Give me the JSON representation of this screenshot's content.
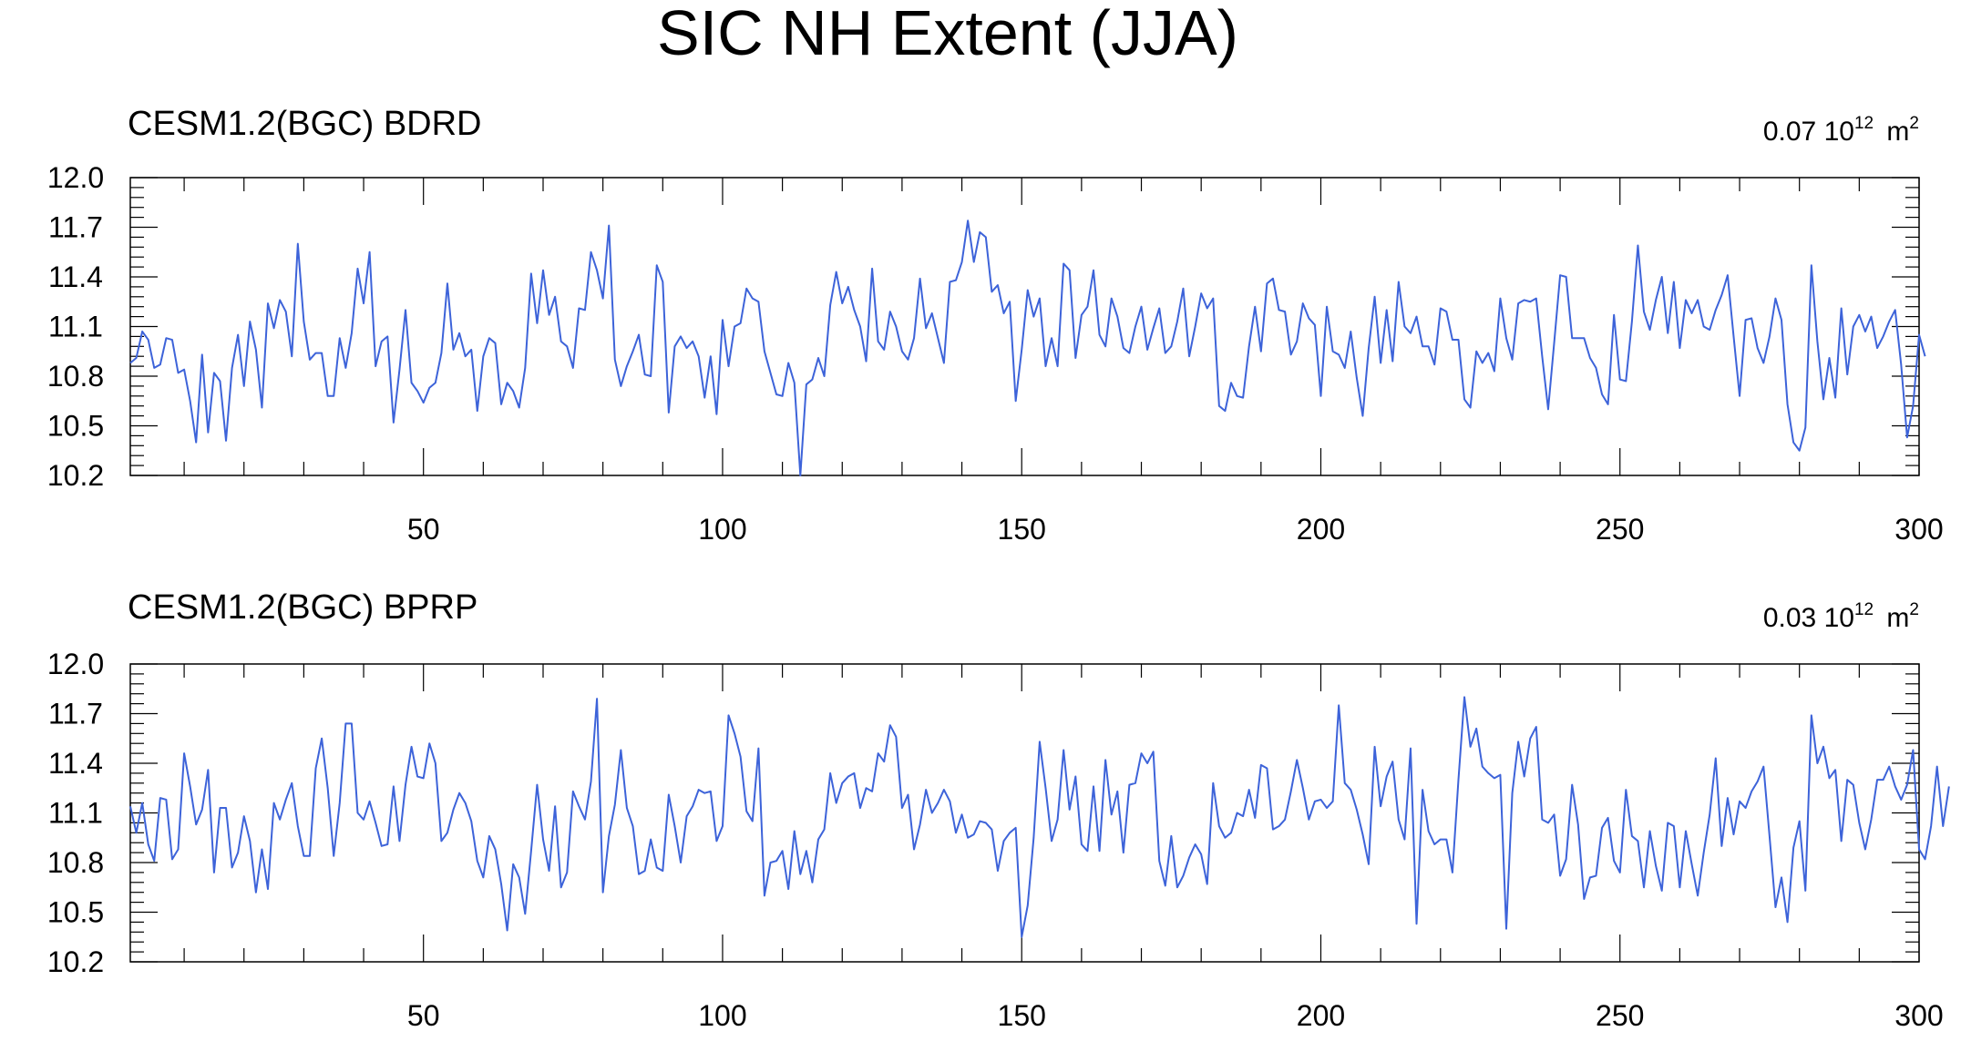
{
  "figure": {
    "title": "SIC NH Extent (JJA)"
  },
  "chart_data": [
    {
      "type": "line",
      "title": "CESM1.2(BGC) BDRD",
      "annotation": {
        "value": "0.07",
        "base": "10",
        "exponent": "12",
        "unit": "m",
        "unit_exponent": "2"
      },
      "xlim": [
        1,
        300
      ],
      "ylim": [
        10.2,
        12.0
      ],
      "x_ticks": [
        "50",
        "100",
        "150",
        "200",
        "250",
        "300"
      ],
      "y_ticks": [
        "12.0",
        "11.7",
        "11.4",
        "11.1",
        "10.8",
        "10.5",
        "10.2"
      ],
      "line_color": "#3d63d9",
      "series": [
        {
          "x_start": 1,
          "values": [
            10.88,
            10.91,
            11.07,
            11.02,
            10.85,
            10.87,
            11.03,
            11.02,
            10.82,
            10.84,
            10.65,
            10.4,
            10.93,
            10.46,
            10.82,
            10.77,
            10.41,
            10.85,
            11.05,
            10.74,
            11.13,
            10.96,
            10.61,
            11.24,
            11.09,
            11.26,
            11.19,
            10.92,
            11.6,
            11.13,
            10.9,
            10.94,
            10.94,
            10.68,
            10.68,
            11.03,
            10.85,
            11.06,
            11.45,
            11.24,
            11.55,
            10.86,
            11.01,
            11.04,
            10.52,
            10.84,
            11.2,
            10.76,
            10.71,
            10.64,
            10.73,
            10.76,
            10.94,
            11.36,
            10.96,
            11.06,
            10.92,
            10.96,
            10.59,
            10.92,
            11.03,
            11.0,
            10.63,
            10.76,
            10.71,
            10.61,
            10.85,
            11.42,
            11.12,
            11.44,
            11.17,
            11.28,
            11.01,
            10.98,
            10.85,
            11.21,
            11.2,
            11.55,
            11.44,
            11.27,
            11.71,
            10.9,
            10.74,
            10.86,
            10.95,
            11.05,
            10.81,
            10.8,
            11.47,
            11.37,
            10.58,
            10.98,
            11.04,
            10.97,
            11.01,
            10.92,
            10.67,
            10.92,
            10.57,
            11.14,
            10.86,
            11.1,
            11.12,
            11.33,
            11.27,
            11.25,
            10.95,
            10.82,
            10.69,
            10.68,
            10.88,
            10.76,
            10.2,
            10.75,
            10.78,
            10.91,
            10.8,
            11.23,
            11.43,
            11.24,
            11.34,
            11.2,
            11.1,
            10.89,
            11.45,
            11.01,
            10.96,
            11.19,
            11.1,
            10.95,
            10.9,
            11.03,
            11.39,
            11.09,
            11.18,
            11.03,
            10.88,
            11.37,
            11.38,
            11.49,
            11.74,
            11.49,
            11.67,
            11.64,
            11.31,
            11.35,
            11.18,
            11.25,
            10.65,
            10.96,
            11.32,
            11.16,
            11.27,
            10.86,
            11.03,
            10.86,
            11.48,
            11.44,
            10.91,
            11.17,
            11.22,
            11.44,
            11.05,
            10.98,
            11.27,
            11.16,
            10.97,
            10.94,
            11.1,
            11.22,
            10.96,
            11.09,
            11.21,
            10.94,
            10.98,
            11.13,
            11.33,
            10.92,
            11.1,
            11.3,
            11.21,
            11.27,
            10.62,
            10.59,
            10.76,
            10.68,
            10.67,
            10.98,
            11.22,
            10.95,
            11.36,
            11.39,
            11.2,
            11.19,
            10.93,
            11.01,
            11.24,
            11.15,
            11.11,
            10.68,
            11.22,
            10.95,
            10.93,
            10.85,
            11.07,
            10.79,
            10.56,
            10.97,
            11.28,
            10.88,
            11.2,
            10.89,
            11.37,
            11.1,
            11.06,
            11.16,
            10.98,
            10.98,
            10.87,
            11.21,
            11.19,
            11.02,
            11.02,
            10.66,
            10.61,
            10.95,
            10.88,
            10.94,
            10.83,
            11.27,
            11.03,
            10.9,
            11.24,
            11.26,
            11.25,
            11.27,
            10.92,
            10.6,
            11.0,
            11.41,
            11.4,
            11.03,
            11.03,
            11.03,
            10.91,
            10.85,
            10.69,
            10.63,
            11.17,
            10.78,
            10.77,
            11.13,
            11.59,
            11.19,
            11.08,
            11.26,
            11.4,
            11.06,
            11.37,
            10.97,
            11.26,
            11.18,
            11.26,
            11.1,
            11.08,
            11.2,
            11.29,
            11.41,
            11.04,
            10.68,
            11.14,
            11.15,
            10.97,
            10.88,
            11.04,
            11.27,
            11.14,
            10.63,
            10.4,
            10.35,
            10.49,
            11.47,
            11.01,
            10.66,
            10.91,
            10.67,
            11.21,
            10.81,
            11.1,
            11.17,
            11.07,
            11.16,
            10.97,
            11.04,
            11.13,
            11.2,
            10.87,
            10.43,
            10.62,
            11.05,
            10.92
          ]
        }
      ]
    },
    {
      "type": "line",
      "title": "CESM1.2(BGC) BPRP",
      "annotation": {
        "value": "0.03",
        "base": "10",
        "exponent": "12",
        "unit": "m",
        "unit_exponent": "2"
      },
      "xlim": [
        1,
        300
      ],
      "ylim": [
        10.2,
        12.0
      ],
      "x_ticks": [
        "50",
        "100",
        "150",
        "200",
        "250",
        "300"
      ],
      "y_ticks": [
        "12.0",
        "11.7",
        "11.4",
        "11.1",
        "10.8",
        "10.5",
        "10.2"
      ],
      "line_color": "#3d63d9",
      "series": [
        {
          "x_start": 1,
          "values": [
            11.14,
            10.98,
            11.16,
            10.91,
            10.81,
            11.19,
            11.18,
            10.82,
            10.88,
            11.46,
            11.26,
            11.03,
            11.12,
            11.36,
            10.74,
            11.13,
            11.13,
            10.77,
            10.86,
            11.08,
            10.93,
            10.62,
            10.88,
            10.64,
            11.16,
            11.06,
            11.18,
            11.28,
            11.02,
            10.84,
            10.84,
            11.37,
            11.55,
            11.25,
            10.84,
            11.16,
            11.64,
            11.64,
            11.1,
            11.06,
            11.17,
            11.04,
            10.9,
            10.91,
            11.26,
            10.93,
            11.27,
            11.5,
            11.32,
            11.31,
            11.52,
            11.4,
            10.93,
            10.98,
            11.12,
            11.22,
            11.16,
            11.05,
            10.81,
            10.71,
            10.96,
            10.88,
            10.67,
            10.39,
            10.79,
            10.71,
            10.49,
            10.87,
            11.27,
            10.94,
            10.75,
            11.14,
            10.65,
            10.74,
            11.23,
            11.14,
            11.06,
            11.29,
            11.79,
            10.62,
            10.96,
            11.15,
            11.48,
            11.13,
            11.02,
            10.73,
            10.75,
            10.94,
            10.77,
            10.75,
            11.21,
            11.02,
            10.8,
            11.08,
            11.14,
            11.24,
            11.22,
            11.23,
            10.93,
            11.02,
            11.69,
            11.58,
            11.44,
            11.11,
            11.05,
            11.49,
            10.6,
            10.8,
            10.81,
            10.87,
            10.64,
            10.99,
            10.73,
            10.87,
            10.68,
            10.94,
            11.0,
            11.34,
            11.16,
            11.28,
            11.32,
            11.34,
            11.13,
            11.25,
            11.23,
            11.46,
            11.41,
            11.63,
            11.56,
            11.13,
            11.21,
            10.88,
            11.03,
            11.24,
            11.1,
            11.16,
            11.24,
            11.17,
            10.98,
            11.09,
            10.95,
            10.97,
            11.05,
            11.04,
            11.0,
            10.75,
            10.93,
            10.98,
            11.01,
            10.35,
            10.54,
            10.95,
            11.53,
            11.25,
            10.93,
            11.06,
            11.48,
            11.12,
            11.32,
            10.91,
            10.87,
            11.26,
            10.87,
            11.42,
            11.09,
            11.23,
            10.86,
            11.27,
            11.28,
            11.46,
            11.4,
            11.47,
            10.81,
            10.66,
            10.96,
            10.65,
            10.72,
            10.83,
            10.91,
            10.85,
            10.67,
            11.28,
            11.02,
            10.95,
            10.98,
            11.1,
            11.08,
            11.24,
            11.07,
            11.39,
            11.37,
            11.0,
            11.02,
            11.06,
            11.23,
            11.42,
            11.25,
            11.06,
            11.17,
            11.18,
            11.13,
            11.17,
            11.75,
            11.28,
            11.24,
            11.12,
            10.97,
            10.79,
            11.5,
            11.14,
            11.32,
            11.41,
            11.06,
            10.94,
            11.49,
            10.43,
            11.24,
            10.99,
            10.91,
            10.94,
            10.94,
            10.74,
            11.3,
            11.8,
            11.5,
            11.61,
            11.38,
            11.34,
            11.31,
            11.33,
            10.4,
            11.22,
            11.53,
            11.32,
            11.55,
            11.62,
            11.06,
            11.04,
            11.09,
            10.72,
            10.82,
            11.27,
            11.03,
            10.58,
            10.71,
            10.72,
            11.01,
            11.07,
            10.81,
            10.74,
            11.24,
            10.96,
            10.93,
            10.65,
            10.99,
            10.78,
            10.63,
            11.04,
            11.02,
            10.65,
            10.99,
            10.79,
            10.6,
            10.86,
            11.09,
            11.43,
            10.9,
            11.19,
            10.97,
            11.17,
            11.13,
            11.23,
            11.29,
            11.38,
            10.96,
            10.53,
            10.71,
            10.44,
            10.89,
            11.05,
            10.63,
            11.69,
            11.4,
            11.5,
            11.31,
            11.36,
            10.93,
            11.3,
            11.27,
            11.04,
            10.88,
            11.06,
            11.3,
            11.3,
            11.38,
            11.26,
            11.18,
            11.27,
            11.48,
            10.88,
            10.82,
            11.02,
            11.38,
            11.02,
            11.26
          ]
        }
      ]
    }
  ]
}
